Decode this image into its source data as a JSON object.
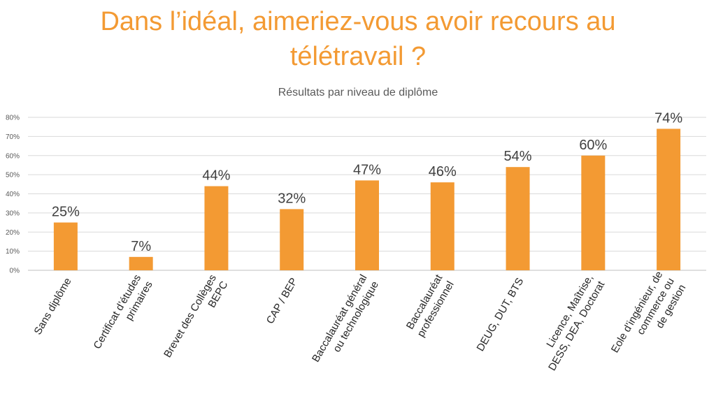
{
  "title_line1": "Dans l’idéal, aimeriez-vous avoir recours au",
  "title_line2": "télétravail ?",
  "chart_data": {
    "type": "bar",
    "title": "Dans l’idéal, aimeriez-vous avoir recours au télétravail ?",
    "subtitle": "Résultats par niveau de diplôme",
    "categories": [
      [
        "Sans diplôme"
      ],
      [
        "Certificat d’études",
        "primaires"
      ],
      [
        "Brevet des Collèges",
        "BEPC"
      ],
      [
        "CAP / BEP"
      ],
      [
        "Baccalauréat général",
        "ou technologique"
      ],
      [
        "Baccalauréat",
        "professionnel"
      ],
      [
        "DEUG, DUT, BTS"
      ],
      [
        "Licence, Maîtrise,",
        "DESS, DEA, Doctorat"
      ],
      [
        "Eole d’ingénieur, de",
        "commerce ou",
        "de gestion"
      ]
    ],
    "values": [
      25,
      7,
      44,
      32,
      47,
      46,
      54,
      60,
      74
    ],
    "data_labels": [
      "25%",
      "7%",
      "44%",
      "32%",
      "47%",
      "46%",
      "54%",
      "60%",
      "74%"
    ],
    "yticks": [
      "0%",
      "10%",
      "20%",
      "30%",
      "40%",
      "50%",
      "60%",
      "70%",
      "80%"
    ],
    "ylim": [
      0,
      80
    ],
    "grid": true,
    "bar_color": "#F39A33",
    "xlabel": "",
    "ylabel": ""
  }
}
